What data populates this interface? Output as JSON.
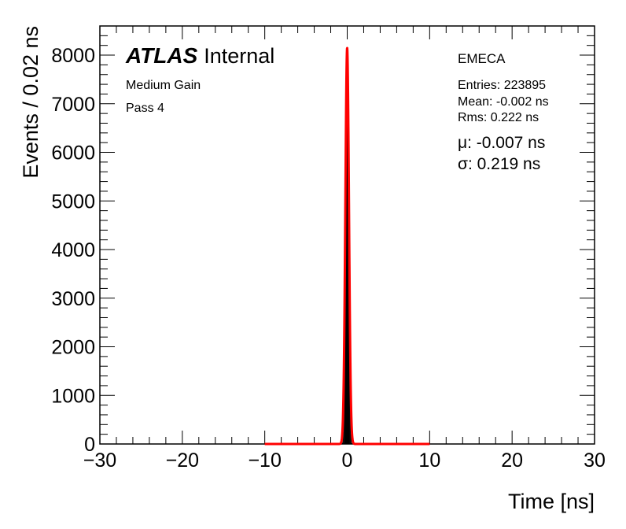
{
  "chart_data": {
    "type": "histogram",
    "xlabel": "Time [ns]",
    "ylabel": "Events / 0.02 ns",
    "xlim": [
      -30,
      30
    ],
    "ylim": [
      0,
      8600
    ],
    "x_ticks": [
      "−30",
      "−20",
      "−10",
      "0",
      "10",
      "20",
      "30"
    ],
    "x_tick_values": [
      -30,
      -20,
      -10,
      0,
      10,
      20,
      30
    ],
    "y_ticks": [
      "0",
      "1000",
      "2000",
      "3000",
      "4000",
      "5000",
      "6000",
      "7000",
      "8000"
    ],
    "y_tick_values": [
      0,
      1000,
      2000,
      3000,
      4000,
      5000,
      6000,
      7000,
      8000
    ],
    "histogram": {
      "color": "#000000",
      "x": [
        -0.6,
        -0.5,
        -0.4,
        -0.3,
        -0.2,
        -0.1,
        0.0,
        0.1,
        0.2,
        0.3,
        0.4,
        0.5,
        0.6
      ],
      "y": [
        30,
        250,
        1100,
        3100,
        5900,
        7800,
        8150,
        7400,
        5300,
        2700,
        900,
        200,
        20
      ]
    },
    "fit": {
      "color": "#ff0000",
      "range": [
        -10,
        10
      ],
      "mu": -0.007,
      "sigma": 0.219,
      "amplitude": 8150
    }
  },
  "labels": {
    "atlas": "ATLAS",
    "internal": "Internal",
    "gain": "Medium Gain",
    "pass": "Pass 4",
    "region": "EMECA",
    "entries": "Entries: 223895",
    "mean": "Mean: -0.002 ns",
    "rms": "Rms: 0.222 ns",
    "fit_mu": "μ: -0.007 ns",
    "fit_sigma": "σ: 0.219 ns"
  }
}
